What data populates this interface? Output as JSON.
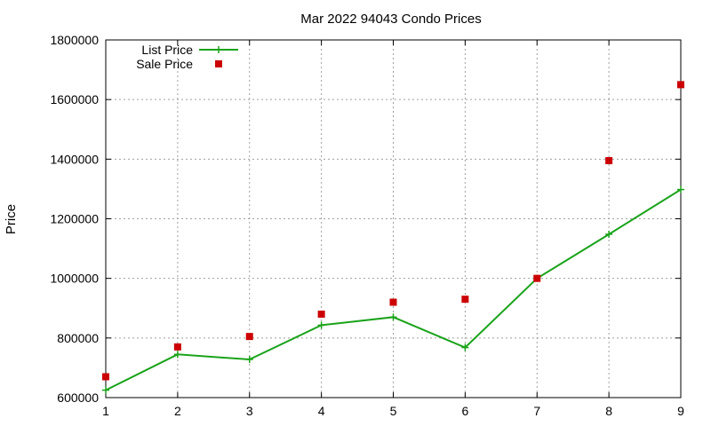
{
  "chart_data": {
    "type": "line",
    "title": "Mar 2022 94043 Condo Prices",
    "xlabel": "",
    "ylabel": "Price",
    "x": [
      1,
      2,
      3,
      4,
      5,
      6,
      7,
      8,
      9
    ],
    "xlim": [
      1,
      9
    ],
    "ylim": [
      600000,
      1800000
    ],
    "yticks": [
      600000,
      800000,
      1000000,
      1200000,
      1400000,
      1600000,
      1800000
    ],
    "xticks": [
      1,
      2,
      3,
      4,
      5,
      6,
      7,
      8,
      9
    ],
    "grid": true,
    "legend_position": "top-left",
    "series": [
      {
        "name": "List Price",
        "style": "line-with-plus-markers",
        "color": "#1aa31a",
        "values": [
          625000,
          745000,
          728000,
          843000,
          870000,
          768000,
          1000000,
          1148000,
          1298000
        ]
      },
      {
        "name": "Sale Price",
        "style": "square-markers",
        "color": "#cc0000",
        "values": [
          670000,
          770000,
          805000,
          880000,
          920000,
          930000,
          1000000,
          1395000,
          1650000
        ]
      }
    ]
  }
}
